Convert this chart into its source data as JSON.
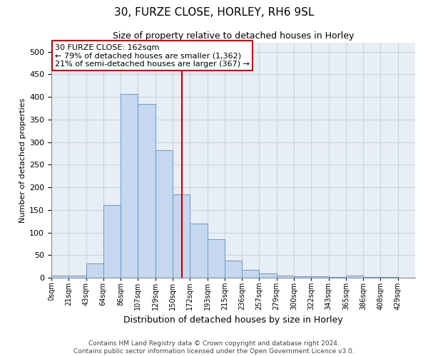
{
  "title_line1": "30, FURZE CLOSE, HORLEY, RH6 9SL",
  "title_line2": "Size of property relative to detached houses in Horley",
  "xlabel": "Distribution of detached houses by size in Horley",
  "ylabel": "Number of detached properties",
  "footer_line1": "Contains HM Land Registry data © Crown copyright and database right 2024.",
  "footer_line2": "Contains public sector information licensed under the Open Government Licence v3.0.",
  "bin_labels": [
    "0sqm",
    "21sqm",
    "43sqm",
    "64sqm",
    "86sqm",
    "107sqm",
    "129sqm",
    "150sqm",
    "172sqm",
    "193sqm",
    "215sqm",
    "236sqm",
    "257sqm",
    "279sqm",
    "300sqm",
    "322sqm",
    "343sqm",
    "365sqm",
    "386sqm",
    "408sqm",
    "429sqm"
  ],
  "bar_values": [
    4,
    4,
    32,
    160,
    407,
    385,
    282,
    185,
    120,
    85,
    38,
    17,
    10,
    5,
    3,
    3,
    1,
    4,
    1,
    1,
    0
  ],
  "bar_color": "#c5d8ef",
  "bar_edge_color": "#6699cc",
  "grid_color": "#c8d4e0",
  "background_color": "#e8eef6",
  "vline_color": "#bb0000",
  "annotation_text": "30 FURZE CLOSE: 162sqm\n← 79% of detached houses are smaller (1,362)\n21% of semi-detached houses are larger (367) →",
  "annotation_box_edge_color": "#bb0000",
  "ylim": [
    0,
    520
  ],
  "yticks": [
    0,
    50,
    100,
    150,
    200,
    250,
    300,
    350,
    400,
    450,
    500
  ]
}
